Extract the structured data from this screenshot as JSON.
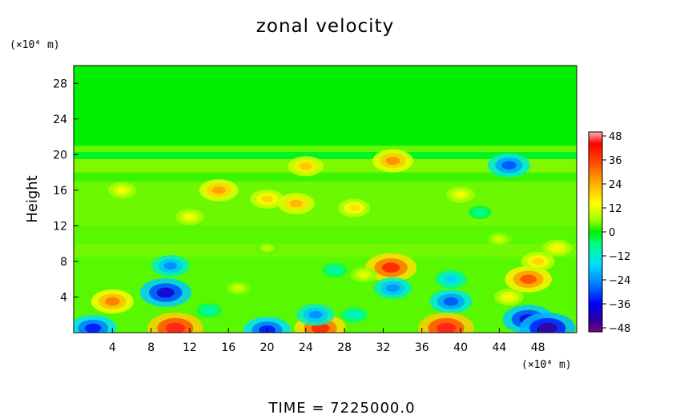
{
  "chart_data": {
    "type": "heatmap",
    "title": "zonal velocity",
    "xlabel": "",
    "ylabel": "Height",
    "x_units": "(×10⁴ m)",
    "y_units": "(×10⁴ m)",
    "xlim": [
      0,
      52
    ],
    "ylim": [
      0,
      30
    ],
    "x_ticks": [
      4,
      8,
      12,
      16,
      20,
      24,
      28,
      32,
      36,
      40,
      44,
      48
    ],
    "x_tick_labels": [
      "4",
      "8",
      "12",
      "16",
      "20",
      "24",
      "28",
      "32",
      "36",
      "40",
      "44",
      "48"
    ],
    "y_ticks": [
      4,
      8,
      12,
      16,
      20,
      24,
      28
    ],
    "y_tick_labels": [
      "4",
      "8",
      "12",
      "16",
      "20",
      "24",
      "28"
    ],
    "colorbar": {
      "min": -50,
      "max": 50,
      "ticks": [
        48,
        36,
        24,
        12,
        0,
        -12,
        -24,
        -36,
        -48
      ],
      "tick_labels": [
        "48",
        "36",
        "24",
        "12",
        "0",
        "−12",
        "−24",
        "−36",
        "−48"
      ],
      "colors": [
        "#800080",
        "#2a00a0",
        "#0000ff",
        "#0080ff",
        "#00e0ff",
        "#00ff80",
        "#00f000",
        "#a0ff00",
        "#ffff00",
        "#ffb000",
        "#ff5000",
        "#ff0000",
        "#ffb0b0"
      ],
      "color_positions": [
        -50,
        -44,
        -36,
        -26,
        -16,
        -6,
        0,
        6,
        14,
        24,
        34,
        44,
        50
      ]
    },
    "features": [
      {
        "x": 10,
        "y": 7.5,
        "value": -25
      },
      {
        "x": 9.5,
        "y": 4.5,
        "value": -40
      },
      {
        "x": 4,
        "y": 3.5,
        "value": 30
      },
      {
        "x": 2,
        "y": 0.5,
        "value": -35
      },
      {
        "x": 10.5,
        "y": 0.5,
        "value": 45
      },
      {
        "x": 20,
        "y": 0.3,
        "value": -35
      },
      {
        "x": 25.5,
        "y": 0.5,
        "value": 40
      },
      {
        "x": 25,
        "y": 2,
        "value": -25
      },
      {
        "x": 32.8,
        "y": 7.3,
        "value": 40
      },
      {
        "x": 33,
        "y": 5,
        "value": -25
      },
      {
        "x": 39,
        "y": 6,
        "value": -18
      },
      {
        "x": 39,
        "y": 3.5,
        "value": -30
      },
      {
        "x": 38.5,
        "y": 0.5,
        "value": 45
      },
      {
        "x": 47,
        "y": 6,
        "value": 35
      },
      {
        "x": 47,
        "y": 1.5,
        "value": -40
      },
      {
        "x": 49,
        "y": 0.5,
        "value": -45
      },
      {
        "x": 48,
        "y": 8,
        "value": 20
      },
      {
        "x": 24,
        "y": 18.7,
        "value": 22
      },
      {
        "x": 33,
        "y": 19.3,
        "value": 28
      },
      {
        "x": 45,
        "y": 18.8,
        "value": -30
      },
      {
        "x": 15,
        "y": 16,
        "value": 26
      },
      {
        "x": 20,
        "y": 15,
        "value": 20
      },
      {
        "x": 23,
        "y": 14.5,
        "value": 24
      },
      {
        "x": 29,
        "y": 14,
        "value": 18
      },
      {
        "x": 5,
        "y": 16,
        "value": 14
      },
      {
        "x": 12,
        "y": 13,
        "value": 14
      },
      {
        "x": 40,
        "y": 15.5,
        "value": 14
      },
      {
        "x": 42,
        "y": 13.5,
        "value": -8
      },
      {
        "x": 30,
        "y": 6.5,
        "value": 12
      },
      {
        "x": 17,
        "y": 5,
        "value": 10
      },
      {
        "x": 27,
        "y": 7,
        "value": -10
      },
      {
        "x": 44,
        "y": 10.5,
        "value": 10
      },
      {
        "x": 50,
        "y": 9.5,
        "value": 15
      },
      {
        "x": 20,
        "y": 9.5,
        "value": 8
      },
      {
        "x": 14,
        "y": 2.5,
        "value": -10
      },
      {
        "x": 29,
        "y": 2,
        "value": -12
      },
      {
        "x": 45,
        "y": 4,
        "value": 15
      }
    ]
  },
  "footer": {
    "time_label": "TIME = 7225000.0"
  }
}
